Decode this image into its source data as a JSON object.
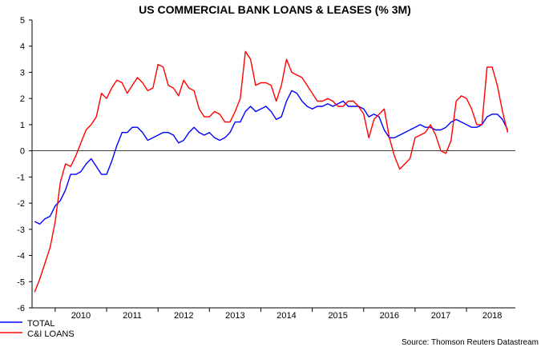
{
  "chart_data": {
    "type": "line",
    "title": "US COMMERCIAL BANK LOANS & LEASES (% 3M)",
    "source": "Source: Thomson Reuters Datastream",
    "ylim": [
      -6,
      5
    ],
    "yticks": [
      "5",
      "4",
      "3",
      "2",
      "1",
      "0",
      "-1",
      "-2",
      "-3",
      "-4",
      "-5",
      "-6"
    ],
    "xlim": [
      2009.55,
      2018.95
    ],
    "xtick_labels": [
      "2010",
      "2011",
      "2012",
      "2013",
      "2014",
      "2015",
      "2016",
      "2017",
      "2018"
    ],
    "zero_line": true,
    "grid": false,
    "legend_position": "bottom-left",
    "colors": {
      "TOTAL": "#0000ff",
      "C&I LOANS": "#ff0000"
    },
    "series": [
      {
        "name": "TOTAL",
        "x": [
          2009.6,
          2009.7,
          2009.8,
          2009.9,
          2010.0,
          2010.1,
          2010.2,
          2010.3,
          2010.4,
          2010.5,
          2010.6,
          2010.7,
          2010.8,
          2010.9,
          2011.0,
          2011.1,
          2011.2,
          2011.3,
          2011.4,
          2011.5,
          2011.6,
          2011.7,
          2011.8,
          2011.9,
          2012.0,
          2012.1,
          2012.2,
          2012.3,
          2012.4,
          2012.5,
          2012.6,
          2012.7,
          2012.8,
          2012.9,
          2013.0,
          2013.1,
          2013.2,
          2013.3,
          2013.4,
          2013.5,
          2013.6,
          2013.7,
          2013.8,
          2013.9,
          2014.0,
          2014.1,
          2014.2,
          2014.3,
          2014.4,
          2014.5,
          2014.6,
          2014.7,
          2014.8,
          2014.9,
          2015.0,
          2015.1,
          2015.2,
          2015.3,
          2015.4,
          2015.5,
          2015.6,
          2015.7,
          2015.8,
          2015.9,
          2016.0,
          2016.1,
          2016.2,
          2016.3,
          2016.4,
          2016.5,
          2016.6,
          2016.7,
          2016.8,
          2016.9,
          2017.0,
          2017.1,
          2017.2,
          2017.3,
          2017.4,
          2017.5,
          2017.6,
          2017.7,
          2017.8,
          2017.9,
          2018.0,
          2018.1,
          2018.2,
          2018.3,
          2018.4,
          2018.5,
          2018.6,
          2018.7,
          2018.8
        ],
        "values": [
          -2.7,
          -2.8,
          -2.6,
          -2.5,
          -2.1,
          -1.9,
          -1.5,
          -0.9,
          -0.9,
          -0.8,
          -0.5,
          -0.3,
          -0.6,
          -0.9,
          -0.9,
          -0.4,
          0.2,
          0.7,
          0.7,
          0.9,
          0.9,
          0.7,
          0.4,
          0.5,
          0.6,
          0.7,
          0.7,
          0.6,
          0.3,
          0.4,
          0.7,
          0.9,
          0.7,
          0.6,
          0.7,
          0.5,
          0.4,
          0.5,
          0.7,
          1.1,
          1.1,
          1.5,
          1.7,
          1.5,
          1.6,
          1.7,
          1.5,
          1.2,
          1.3,
          1.9,
          2.3,
          2.2,
          1.9,
          1.7,
          1.6,
          1.7,
          1.7,
          1.8,
          1.7,
          1.8,
          1.9,
          1.7,
          1.7,
          1.7,
          1.6,
          1.3,
          1.4,
          1.3,
          0.8,
          0.5,
          0.5,
          0.6,
          0.7,
          0.8,
          0.9,
          1.0,
          0.9,
          0.9,
          0.8,
          0.8,
          0.9,
          1.1,
          1.2,
          1.1,
          1.0,
          0.9,
          0.9,
          1.0,
          1.3,
          1.4,
          1.4,
          1.2,
          0.8
        ]
      },
      {
        "name": "C&I LOANS",
        "x": [
          2009.6,
          2009.7,
          2009.8,
          2009.9,
          2010.0,
          2010.1,
          2010.2,
          2010.3,
          2010.4,
          2010.5,
          2010.6,
          2010.7,
          2010.8,
          2010.9,
          2011.0,
          2011.1,
          2011.2,
          2011.3,
          2011.4,
          2011.5,
          2011.6,
          2011.7,
          2011.8,
          2011.9,
          2012.0,
          2012.1,
          2012.2,
          2012.3,
          2012.4,
          2012.5,
          2012.6,
          2012.7,
          2012.8,
          2012.9,
          2013.0,
          2013.1,
          2013.2,
          2013.3,
          2013.4,
          2013.5,
          2013.6,
          2013.7,
          2013.8,
          2013.9,
          2014.0,
          2014.1,
          2014.2,
          2014.3,
          2014.4,
          2014.5,
          2014.6,
          2014.7,
          2014.8,
          2014.9,
          2015.0,
          2015.1,
          2015.2,
          2015.3,
          2015.4,
          2015.5,
          2015.6,
          2015.7,
          2015.8,
          2015.9,
          2016.0,
          2016.1,
          2016.2,
          2016.3,
          2016.4,
          2016.5,
          2016.6,
          2016.7,
          2016.8,
          2016.9,
          2017.0,
          2017.1,
          2017.2,
          2017.3,
          2017.4,
          2017.5,
          2017.6,
          2017.7,
          2017.8,
          2017.9,
          2018.0,
          2018.1,
          2018.2,
          2018.3,
          2018.4,
          2018.5,
          2018.6,
          2018.7,
          2018.8
        ],
        "values": [
          -5.4,
          -4.9,
          -4.3,
          -3.7,
          -2.7,
          -1.2,
          -0.5,
          -0.6,
          -0.2,
          0.3,
          0.8,
          1.0,
          1.3,
          2.2,
          2.0,
          2.4,
          2.7,
          2.6,
          2.2,
          2.5,
          2.8,
          2.6,
          2.3,
          2.4,
          3.3,
          3.2,
          2.5,
          2.4,
          2.1,
          2.7,
          2.4,
          2.3,
          1.6,
          1.3,
          1.3,
          1.5,
          1.4,
          1.1,
          1.1,
          1.5,
          2.0,
          3.8,
          3.5,
          2.5,
          2.6,
          2.6,
          2.5,
          1.9,
          2.5,
          3.5,
          3.0,
          2.9,
          2.8,
          2.5,
          2.2,
          1.9,
          1.9,
          2.0,
          1.9,
          1.7,
          1.7,
          1.9,
          1.9,
          1.7,
          1.4,
          0.5,
          1.2,
          1.4,
          1.6,
          0.5,
          -0.2,
          -0.7,
          -0.5,
          -0.3,
          0.5,
          0.6,
          0.7,
          1.0,
          0.6,
          0.0,
          -0.1,
          0.4,
          1.9,
          2.1,
          2.0,
          1.6,
          1.0,
          1.0,
          3.2,
          3.2,
          2.5,
          1.5,
          0.7
        ]
      }
    ]
  }
}
